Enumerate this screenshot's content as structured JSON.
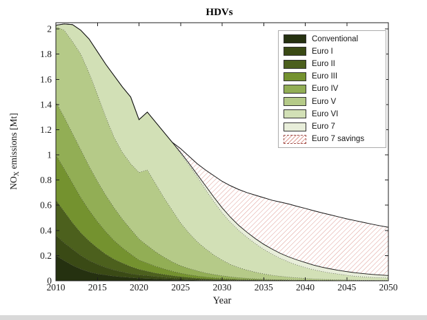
{
  "title": "HDVs",
  "axes": {
    "xlabel": "Year",
    "ylabel_prefix": "NO",
    "ylabel_sub": "X",
    "ylabel_suffix": " emissions [Mt]",
    "x_ticks": [
      2010,
      2015,
      2020,
      2025,
      2030,
      2035,
      2040,
      2045,
      2050
    ],
    "y_ticks": [
      "0",
      "0.2",
      "0.4",
      "0.6",
      "0.8",
      "1",
      "1.2",
      "1.4",
      "1.6",
      "1.8",
      "2"
    ],
    "xlim": [
      2010,
      2050
    ],
    "ylim": [
      0,
      2.05
    ],
    "axis_color": "#1c1c1c"
  },
  "legend": {
    "entries": [
      {
        "label": "Conventional",
        "color": "#253110"
      },
      {
        "label": "Euro I",
        "color": "#3a4a15"
      },
      {
        "label": "Euro II",
        "color": "#4c601d"
      },
      {
        "label": "Euro III",
        "color": "#74922f"
      },
      {
        "label": "Euro IV",
        "color": "#92ae55"
      },
      {
        "label": "Euro V",
        "color": "#b5ca88"
      },
      {
        "label": "Euro VI",
        "color": "#d2e0b6"
      },
      {
        "label": "Euro 7",
        "color": "#e8eeda"
      },
      {
        "label": "Euro 7 savings",
        "hatch": true,
        "hatch_color": "#dd9a93",
        "border_color": "#9e4f4a"
      }
    ]
  },
  "chart_data": {
    "type": "area",
    "stacked": true,
    "stack_mode": "cumulative",
    "title": "HDVs",
    "xlabel": "Year",
    "ylabel": "NOx emissions [Mt]",
    "xlim": [
      2010,
      2050
    ],
    "ylim": [
      0,
      2.05
    ],
    "x": [
      2010,
      2011,
      2012,
      2013,
      2014,
      2015,
      2016,
      2017,
      2018,
      2019,
      2020,
      2021,
      2022,
      2023,
      2024,
      2025,
      2026,
      2027,
      2028,
      2029,
      2030,
      2031,
      2032,
      2033,
      2034,
      2035,
      2036,
      2037,
      2038,
      2039,
      2040,
      2041,
      2042,
      2043,
      2044,
      2045,
      2046,
      2047,
      2048,
      2049,
      2050
    ],
    "series": [
      {
        "name": "Conventional",
        "color": "#253110",
        "top": [
          0.2,
          0.16,
          0.122,
          0.092,
          0.07,
          0.055,
          0.045,
          0.036,
          0.03,
          0.025,
          0.02,
          0.018,
          0.015,
          0.012,
          0.01,
          0.008,
          0.006,
          0.005,
          0.004,
          0.003,
          0.003,
          0.002,
          0.002,
          0.002,
          0.001,
          0.001,
          0.001,
          0.001,
          0.001,
          0.001,
          0,
          0,
          0,
          0,
          0,
          0,
          0,
          0,
          0,
          0,
          0
        ]
      },
      {
        "name": "Euro I",
        "color": "#3a4a15",
        "top": [
          0.36,
          0.3,
          0.25,
          0.2,
          0.16,
          0.13,
          0.105,
          0.085,
          0.07,
          0.055,
          0.045,
          0.04,
          0.033,
          0.027,
          0.022,
          0.018,
          0.014,
          0.011,
          0.009,
          0.007,
          0.006,
          0.005,
          0.004,
          0.004,
          0.003,
          0.002,
          0.002,
          0.002,
          0.002,
          0.001,
          0.001,
          0.001,
          0.001,
          0.001,
          0,
          0,
          0,
          0,
          0,
          0,
          0
        ]
      },
      {
        "name": "Euro II",
        "color": "#4c601d",
        "top": [
          0.64,
          0.55,
          0.46,
          0.38,
          0.315,
          0.26,
          0.21,
          0.17,
          0.14,
          0.112,
          0.09,
          0.075,
          0.06,
          0.05,
          0.04,
          0.032,
          0.026,
          0.02,
          0.016,
          0.013,
          0.011,
          0.009,
          0.007,
          0.006,
          0.005,
          0.004,
          0.004,
          0.003,
          0.003,
          0.002,
          0.002,
          0.002,
          0.001,
          0.001,
          0.001,
          0.001,
          0.001,
          0.001,
          0,
          0,
          0
        ]
      },
      {
        "name": "Euro III",
        "color": "#74922f",
        "top": [
          1.0,
          0.89,
          0.775,
          0.66,
          0.56,
          0.47,
          0.39,
          0.32,
          0.262,
          0.212,
          0.165,
          0.14,
          0.115,
          0.095,
          0.076,
          0.06,
          0.048,
          0.038,
          0.03,
          0.024,
          0.019,
          0.015,
          0.012,
          0.01,
          0.008,
          0.007,
          0.006,
          0.005,
          0.004,
          0.003,
          0.003,
          0.002,
          0.002,
          0.002,
          0.001,
          0.001,
          0.001,
          0.001,
          0.001,
          0.001,
          0.001
        ]
      },
      {
        "name": "Euro IV",
        "color": "#92ae55",
        "top": [
          1.42,
          1.3,
          1.17,
          1.04,
          0.91,
          0.79,
          0.68,
          0.58,
          0.49,
          0.41,
          0.332,
          0.28,
          0.23,
          0.188,
          0.15,
          0.12,
          0.098,
          0.079,
          0.062,
          0.05,
          0.04,
          0.031,
          0.025,
          0.02,
          0.016,
          0.013,
          0.01,
          0.008,
          0.007,
          0.006,
          0.005,
          0.004,
          0.003,
          0.003,
          0.002,
          0.002,
          0.002,
          0.001,
          0.001,
          0.001,
          0.001
        ]
      },
      {
        "name": "Euro V",
        "color": "#b5ca88",
        "top": [
          2.02,
          1.99,
          1.9,
          1.8,
          1.65,
          1.48,
          1.3,
          1.14,
          1.02,
          0.93,
          0.86,
          0.88,
          0.77,
          0.66,
          0.56,
          0.46,
          0.38,
          0.31,
          0.255,
          0.205,
          0.165,
          0.13,
          0.105,
          0.085,
          0.068,
          0.055,
          0.044,
          0.036,
          0.029,
          0.024,
          0.019,
          0.015,
          0.012,
          0.01,
          0.008,
          0.007,
          0.005,
          0.004,
          0.004,
          0.003,
          0.003
        ]
      },
      {
        "name": "Euro VI",
        "color": "#d2e0b6",
        "top": [
          2.03,
          2.04,
          2.035,
          1.99,
          1.92,
          1.82,
          1.72,
          1.63,
          1.54,
          1.46,
          1.28,
          1.34,
          1.26,
          1.18,
          1.1,
          1.01,
          0.92,
          0.825,
          0.725,
          0.63,
          0.54,
          0.465,
          0.4,
          0.345,
          0.295,
          0.25,
          0.212,
          0.178,
          0.15,
          0.126,
          0.105,
          0.088,
          0.074,
          0.062,
          0.053,
          0.044,
          0.036,
          0.031,
          0.027,
          0.024,
          0.022
        ]
      },
      {
        "name": "Euro 7",
        "color": "#e8eeda",
        "top": [
          2.03,
          2.04,
          2.035,
          1.99,
          1.92,
          1.82,
          1.72,
          1.63,
          1.54,
          1.46,
          1.28,
          1.34,
          1.26,
          1.18,
          1.1,
          1.02,
          0.935,
          0.845,
          0.755,
          0.665,
          0.58,
          0.505,
          0.44,
          0.385,
          0.335,
          0.29,
          0.252,
          0.218,
          0.19,
          0.166,
          0.145,
          0.125,
          0.108,
          0.095,
          0.083,
          0.073,
          0.064,
          0.057,
          0.051,
          0.046,
          0.042
        ]
      }
    ],
    "baseline": {
      "name": "Euro 7 savings",
      "hatch_color": "#dd9a93",
      "values": [
        2.03,
        2.04,
        2.035,
        1.99,
        1.92,
        1.82,
        1.72,
        1.63,
        1.54,
        1.46,
        1.28,
        1.34,
        1.26,
        1.18,
        1.1,
        1.05,
        0.99,
        0.93,
        0.88,
        0.835,
        0.79,
        0.755,
        0.725,
        0.7,
        0.68,
        0.66,
        0.64,
        0.625,
        0.61,
        0.592,
        0.575,
        0.557,
        0.54,
        0.524,
        0.508,
        0.492,
        0.478,
        0.464,
        0.45,
        0.437,
        0.425
      ]
    }
  }
}
